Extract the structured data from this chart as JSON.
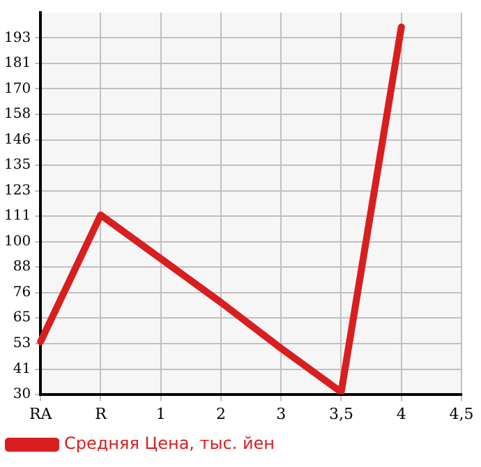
{
  "chart_data": {
    "type": "line",
    "categories": [
      "RA",
      "R",
      "1",
      "2",
      "3",
      "3,5",
      "4",
      "4,5"
    ],
    "series": [
      {
        "name": "Средняя Цена, тыс. йен",
        "color": "#d81e1e",
        "values": [
          54,
          112,
          92,
          72,
          51,
          31,
          198,
          null
        ]
      }
    ],
    "ylim": [
      30,
      204.6
    ],
    "yticks": [
      30,
      {
        "value": 41.4,
        "label": "41"
      },
      {
        "value": 53.3,
        "label": "53"
      },
      {
        "value": 64.9,
        "label": "65"
      },
      {
        "value": 76.4,
        "label": "76"
      },
      {
        "value": 88.2,
        "label": "88"
      },
      {
        "value": 99.8,
        "label": "100"
      },
      {
        "value": 111.5,
        "label": "111"
      },
      {
        "value": 123.1,
        "label": "123"
      },
      {
        "value": 134.8,
        "label": "135"
      },
      {
        "value": 146.4,
        "label": "146"
      },
      {
        "value": 158,
        "label": "158"
      },
      {
        "value": 169.7,
        "label": "170"
      },
      {
        "value": 181.3,
        "label": "181"
      },
      193
    ],
    "grid": true,
    "legend": "bottom left",
    "marker": "none",
    "line_style": "solid"
  }
}
